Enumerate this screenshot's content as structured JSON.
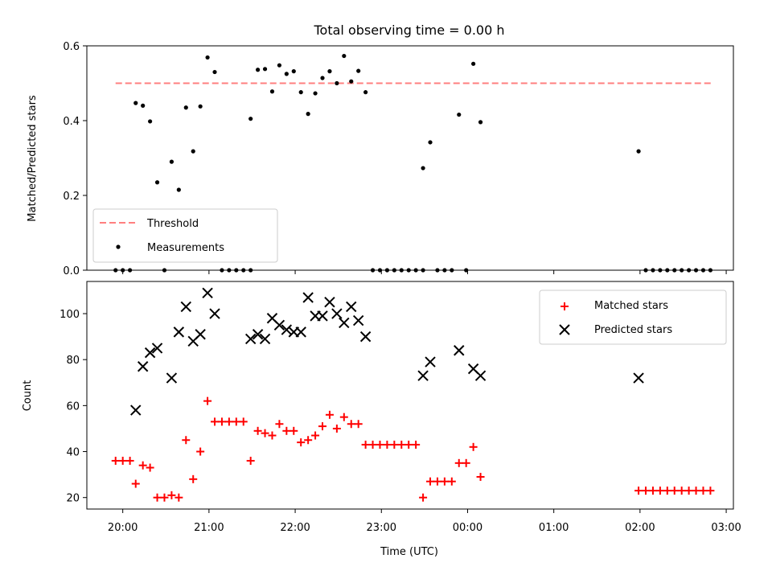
{
  "chart_data": [
    {
      "type": "scatter",
      "title": "Total observing time = 0.00 h",
      "xlabel": "",
      "ylabel": "Matched/Predicted stars",
      "ylim": [
        0,
        0.6
      ],
      "yticks": [
        "0.0",
        "0.2",
        "0.4",
        "0.6"
      ],
      "threshold": {
        "name": "Threshold",
        "value": 0.5,
        "x_from": "19:55",
        "x_to": "02:50",
        "color": "#ff7f7f"
      },
      "series": [
        {
          "name": "Measurements",
          "marker": "dot",
          "color": "#000000",
          "points": [
            [
              "19:55",
              0.0
            ],
            [
              "20:00",
              0.0
            ],
            [
              "20:05",
              0.0
            ],
            [
              "20:09",
              0.447
            ],
            [
              "20:14",
              0.44
            ],
            [
              "20:19",
              0.398
            ],
            [
              "20:24",
              0.235
            ],
            [
              "20:29",
              0.0
            ],
            [
              "20:34",
              0.29
            ],
            [
              "20:39",
              0.215
            ],
            [
              "20:44",
              0.435
            ],
            [
              "20:49",
              0.318
            ],
            [
              "20:54",
              0.438
            ],
            [
              "20:59",
              0.569
            ],
            [
              "21:04",
              0.53
            ],
            [
              "21:09",
              0.0
            ],
            [
              "21:14",
              0.0
            ],
            [
              "21:19",
              0.0
            ],
            [
              "21:24",
              0.0
            ],
            [
              "21:29",
              0.0
            ],
            [
              "21:29",
              0.405
            ],
            [
              "21:34",
              0.536
            ],
            [
              "21:39",
              0.538
            ],
            [
              "21:44",
              0.478
            ],
            [
              "21:49",
              0.548
            ],
            [
              "21:54",
              0.525
            ],
            [
              "21:59",
              0.532
            ],
            [
              "22:04",
              0.476
            ],
            [
              "22:09",
              0.418
            ],
            [
              "22:14",
              0.473
            ],
            [
              "22:19",
              0.514
            ],
            [
              "22:24",
              0.532
            ],
            [
              "22:29",
              0.5
            ],
            [
              "22:34",
              0.573
            ],
            [
              "22:39",
              0.505
            ],
            [
              "22:44",
              0.533
            ],
            [
              "22:49",
              0.476
            ],
            [
              "22:54",
              0.0
            ],
            [
              "22:59",
              0.0
            ],
            [
              "23:04",
              0.0
            ],
            [
              "23:09",
              0.0
            ],
            [
              "23:14",
              0.0
            ],
            [
              "23:19",
              0.0
            ],
            [
              "23:24",
              0.0
            ],
            [
              "23:29",
              0.0
            ],
            [
              "23:29",
              0.273
            ],
            [
              "23:34",
              0.342
            ],
            [
              "23:39",
              0.0
            ],
            [
              "23:44",
              0.0
            ],
            [
              "23:49",
              0.0
            ],
            [
              "23:54",
              0.416
            ],
            [
              "23:59",
              0.0
            ],
            [
              "00:04",
              0.552
            ],
            [
              "00:09",
              0.396
            ],
            [
              "01:59",
              0.318
            ],
            [
              "02:04",
              0.0
            ],
            [
              "02:09",
              0.0
            ],
            [
              "02:14",
              0.0
            ],
            [
              "02:19",
              0.0
            ],
            [
              "02:24",
              0.0
            ],
            [
              "02:29",
              0.0
            ],
            [
              "02:34",
              0.0
            ],
            [
              "02:39",
              0.0
            ],
            [
              "02:44",
              0.0
            ],
            [
              "02:49",
              0.0
            ]
          ]
        }
      ],
      "legend": {
        "position": "lower-left",
        "entries": [
          "Threshold",
          "Measurements"
        ]
      }
    },
    {
      "type": "scatter",
      "title": "",
      "xlabel": "Time (UTC)",
      "ylabel": "Count",
      "xlim": [
        "19:35",
        "03:05"
      ],
      "ylim": [
        15,
        114
      ],
      "yticks": [
        "20",
        "40",
        "60",
        "80",
        "100"
      ],
      "xticks": [
        "20:00",
        "21:00",
        "22:00",
        "23:00",
        "00:00",
        "01:00",
        "02:00",
        "03:00"
      ],
      "series": [
        {
          "name": "Matched stars",
          "marker": "plus",
          "color": "#ff0000",
          "points": [
            [
              "19:55",
              36
            ],
            [
              "20:00",
              36
            ],
            [
              "20:05",
              36
            ],
            [
              "20:09",
              26
            ],
            [
              "20:14",
              34
            ],
            [
              "20:19",
              33
            ],
            [
              "20:24",
              20
            ],
            [
              "20:29",
              20
            ],
            [
              "20:34",
              21
            ],
            [
              "20:39",
              20
            ],
            [
              "20:44",
              45
            ],
            [
              "20:49",
              28
            ],
            [
              "20:54",
              40
            ],
            [
              "20:59",
              62
            ],
            [
              "21:04",
              53
            ],
            [
              "21:09",
              53
            ],
            [
              "21:14",
              53
            ],
            [
              "21:19",
              53
            ],
            [
              "21:24",
              53
            ],
            [
              "21:29",
              36
            ],
            [
              "21:34",
              49
            ],
            [
              "21:39",
              48
            ],
            [
              "21:44",
              47
            ],
            [
              "21:49",
              52
            ],
            [
              "21:54",
              49
            ],
            [
              "21:59",
              49
            ],
            [
              "22:04",
              44
            ],
            [
              "22:09",
              45
            ],
            [
              "22:14",
              47
            ],
            [
              "22:19",
              51
            ],
            [
              "22:24",
              56
            ],
            [
              "22:29",
              50
            ],
            [
              "22:34",
              55
            ],
            [
              "22:39",
              52
            ],
            [
              "22:44",
              52
            ],
            [
              "22:49",
              43
            ],
            [
              "22:54",
              43
            ],
            [
              "22:59",
              43
            ],
            [
              "23:04",
              43
            ],
            [
              "23:09",
              43
            ],
            [
              "23:14",
              43
            ],
            [
              "23:19",
              43
            ],
            [
              "23:24",
              43
            ],
            [
              "23:29",
              20
            ],
            [
              "23:34",
              27
            ],
            [
              "23:39",
              27
            ],
            [
              "23:44",
              27
            ],
            [
              "23:49",
              27
            ],
            [
              "23:54",
              35
            ],
            [
              "23:59",
              35
            ],
            [
              "00:04",
              42
            ],
            [
              "00:09",
              29
            ],
            [
              "01:59",
              23
            ],
            [
              "02:04",
              23
            ],
            [
              "02:09",
              23
            ],
            [
              "02:14",
              23
            ],
            [
              "02:19",
              23
            ],
            [
              "02:24",
              23
            ],
            [
              "02:29",
              23
            ],
            [
              "02:34",
              23
            ],
            [
              "02:39",
              23
            ],
            [
              "02:44",
              23
            ],
            [
              "02:49",
              23
            ]
          ]
        },
        {
          "name": "Predicted stars",
          "marker": "cross",
          "color": "#000000",
          "points": [
            [
              "20:09",
              58
            ],
            [
              "20:14",
              77
            ],
            [
              "20:19",
              83
            ],
            [
              "20:24",
              85
            ],
            [
              "20:34",
              72
            ],
            [
              "20:39",
              92
            ],
            [
              "20:44",
              103
            ],
            [
              "20:49",
              88
            ],
            [
              "20:54",
              91
            ],
            [
              "20:59",
              109
            ],
            [
              "21:04",
              100
            ],
            [
              "21:29",
              89
            ],
            [
              "21:34",
              91
            ],
            [
              "21:39",
              89
            ],
            [
              "21:44",
              98
            ],
            [
              "21:49",
              95
            ],
            [
              "21:54",
              93
            ],
            [
              "21:59",
              92
            ],
            [
              "22:04",
              92
            ],
            [
              "22:09",
              107
            ],
            [
              "22:14",
              99
            ],
            [
              "22:19",
              99
            ],
            [
              "22:24",
              105
            ],
            [
              "22:29",
              100
            ],
            [
              "22:34",
              96
            ],
            [
              "22:39",
              103
            ],
            [
              "22:44",
              97
            ],
            [
              "22:49",
              90
            ],
            [
              "23:29",
              73
            ],
            [
              "23:34",
              79
            ],
            [
              "23:54",
              84
            ],
            [
              "00:04",
              76
            ],
            [
              "00:09",
              73
            ],
            [
              "01:59",
              72
            ]
          ]
        }
      ],
      "legend": {
        "position": "upper-right",
        "entries": [
          "Matched stars",
          "Predicted stars"
        ]
      }
    }
  ]
}
